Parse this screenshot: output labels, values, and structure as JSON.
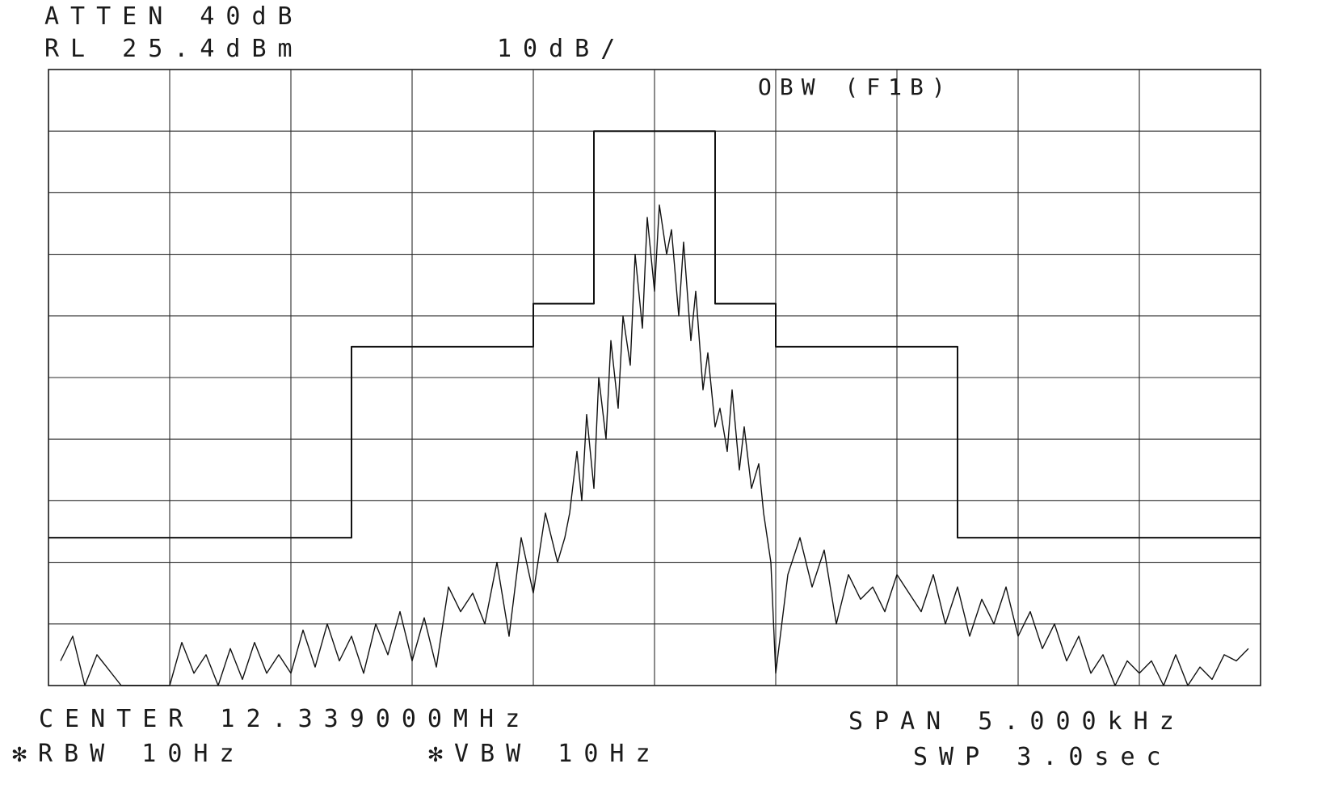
{
  "header": {
    "atten": "ATTEN 40dB",
    "ref_level": "RL 25.4dBm",
    "scale": "10dB/",
    "mask_label": "OBW (F1B)"
  },
  "footer": {
    "center": "CENTER 12.339000MHz",
    "span": "SPAN 5.000kHz",
    "rbw": "✻RBW 10Hz",
    "vbw": "✻VBW 10Hz",
    "sweep": "SWP 3.0sec"
  },
  "chart_data": {
    "type": "line",
    "title": "",
    "xlabel": "",
    "ylabel": "",
    "x_unit": "kHz offset from center",
    "y_unit": "dB",
    "xlim": [
      -2.5,
      2.5
    ],
    "ylim": [
      -100,
      0
    ],
    "x_divisions": 10,
    "y_divisions": 10,
    "grid": true,
    "series": [
      {
        "role": "mask",
        "x": [
          -2.5,
          -1.25,
          -1.25,
          -0.5,
          -0.5,
          -0.25,
          -0.25,
          0.25,
          0.25,
          0.5,
          0.5,
          1.25,
          1.25,
          2.5
        ],
        "values": [
          -76,
          -76,
          -45,
          -45,
          -38,
          -38,
          -10,
          -10,
          -38,
          -38,
          -45,
          -45,
          -76,
          -76
        ]
      },
      {
        "role": "spectrum",
        "x": [
          -2.45,
          -2.4,
          -2.35,
          -2.3,
          -2.2,
          -2.1,
          -2.0,
          -1.95,
          -1.9,
          -1.85,
          -1.8,
          -1.75,
          -1.7,
          -1.65,
          -1.6,
          -1.55,
          -1.5,
          -1.45,
          -1.4,
          -1.35,
          -1.3,
          -1.25,
          -1.2,
          -1.15,
          -1.1,
          -1.05,
          -1.0,
          -0.95,
          -0.9,
          -0.85,
          -0.8,
          -0.75,
          -0.7,
          -0.65,
          -0.6,
          -0.55,
          -0.5,
          -0.45,
          -0.4,
          -0.37,
          -0.35,
          -0.32,
          -0.3,
          -0.28,
          -0.25,
          -0.23,
          -0.2,
          -0.18,
          -0.15,
          -0.13,
          -0.1,
          -0.08,
          -0.05,
          -0.03,
          0.0,
          0.02,
          0.05,
          0.07,
          0.1,
          0.12,
          0.15,
          0.17,
          0.2,
          0.22,
          0.25,
          0.27,
          0.3,
          0.32,
          0.35,
          0.37,
          0.4,
          0.43,
          0.45,
          0.48,
          0.5,
          0.55,
          0.6,
          0.65,
          0.7,
          0.75,
          0.8,
          0.85,
          0.9,
          0.95,
          1.0,
          1.05,
          1.1,
          1.15,
          1.2,
          1.25,
          1.3,
          1.35,
          1.4,
          1.45,
          1.5,
          1.55,
          1.6,
          1.65,
          1.7,
          1.75,
          1.8,
          1.85,
          1.9,
          1.95,
          2.0,
          2.05,
          2.1,
          2.15,
          2.2,
          2.25,
          2.3,
          2.35,
          2.4,
          2.45
        ],
        "values": [
          -96,
          -92,
          -100,
          -95,
          -100,
          -100,
          -100,
          -93,
          -98,
          -95,
          -100,
          -94,
          -99,
          -93,
          -98,
          -95,
          -98,
          -91,
          -97,
          -90,
          -96,
          -92,
          -98,
          -90,
          -95,
          -88,
          -96,
          -89,
          -97,
          -84,
          -88,
          -85,
          -90,
          -80,
          -92,
          -76,
          -85,
          -72,
          -80,
          -76,
          -72,
          -62,
          -70,
          -56,
          -68,
          -50,
          -60,
          -44,
          -55,
          -40,
          -48,
          -30,
          -42,
          -24,
          -36,
          -22,
          -30,
          -26,
          -40,
          -28,
          -44,
          -36,
          -52,
          -46,
          -58,
          -55,
          -62,
          -52,
          -65,
          -58,
          -68,
          -64,
          -72,
          -80,
          -98,
          -82,
          -76,
          -84,
          -78,
          -90,
          -82,
          -86,
          -84,
          -88,
          -82,
          -85,
          -88,
          -82,
          -90,
          -84,
          -92,
          -86,
          -90,
          -84,
          -92,
          -88,
          -94,
          -90,
          -96,
          -92,
          -98,
          -95,
          -100,
          -96,
          -98,
          -96,
          -100,
          -95,
          -100,
          -97,
          -99,
          -95,
          -96,
          -94
        ]
      }
    ]
  }
}
